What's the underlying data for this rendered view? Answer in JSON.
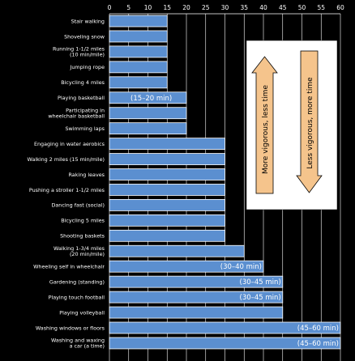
{
  "chart_data": {
    "type": "bar",
    "orientation": "horizontal",
    "x_ticks": [
      0,
      5,
      10,
      15,
      20,
      25,
      30,
      35,
      40,
      45,
      50,
      55,
      60
    ],
    "xlim": [
      0,
      60
    ],
    "grid": true,
    "categories": [
      "Stair walking",
      "Shoveling snow",
      "Running 1-1/2 miles\n(10 min/mile)",
      "Jumping rope",
      "Bicycling 4 miles",
      "Playing basketball",
      "Participating in\nwheelchair basketball",
      "Swimming laps",
      "Engaging in water aerobics",
      "Walking 2 miles (15 min/mile)",
      "Raking leaves",
      "Pushing a stroller 1-1/2 miles",
      "Dancing fast (social)",
      "Bicycling 5 miles",
      "Shooting baskets",
      "Walking 1-3/4 miles\n(20 min/mile)",
      "Wheeling self in wheelchair",
      "Gardening (standing)",
      "Playing touch football",
      "Playing volleyball",
      "Washing windows or floors",
      "Washing and waxing\na car (a time)"
    ],
    "values": [
      15,
      15,
      15,
      15,
      15,
      20,
      20,
      20,
      30,
      30,
      30,
      30,
      30,
      30,
      30,
      35,
      40,
      45,
      45,
      45,
      60,
      60
    ],
    "bar_labels": [
      "",
      "",
      "",
      "",
      "",
      "(15–20 min)",
      "",
      "",
      "",
      "",
      "",
      "",
      "",
      "",
      "",
      "",
      "(30–40 min)",
      "(30–45 min)",
      "(30–45 min)",
      "",
      "(45–60 min)",
      "(45–60 min)"
    ],
    "colors": {
      "background": "#000000",
      "bar_fill": "#5b8fd0",
      "bar_stroke": "#ffffff",
      "grid": "#ffffff",
      "text": "#ffffff",
      "legend_box": "#ffffff",
      "arrow_up": "#f5c48c",
      "arrow_down": "#f5c48c"
    },
    "legend": {
      "placement": "right",
      "up_label": "More vigorous, less time",
      "down_label": "Less vigorous, more time"
    }
  }
}
